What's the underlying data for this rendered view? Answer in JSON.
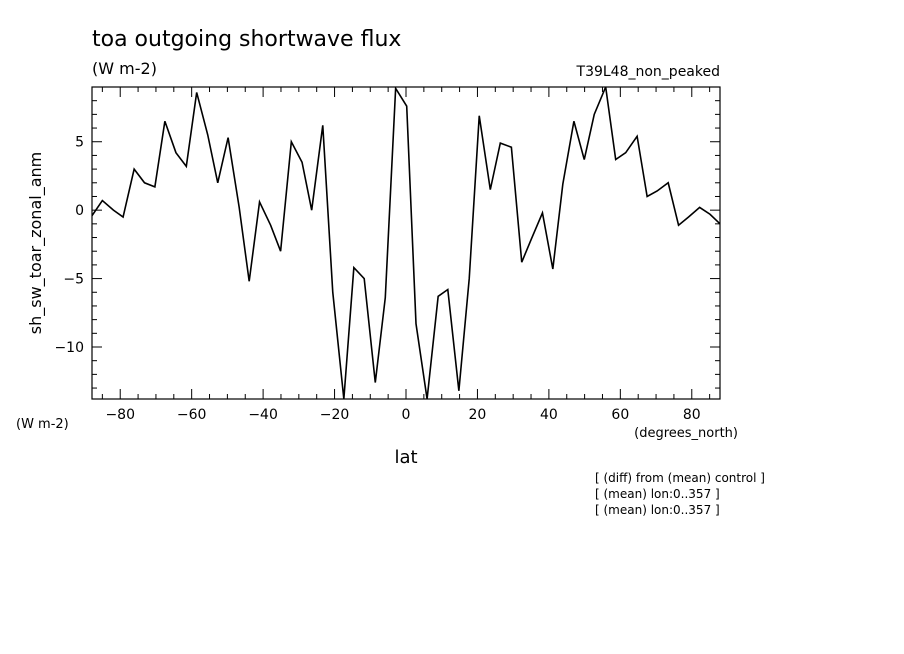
{
  "chart_data": {
    "type": "line",
    "title": "toa outgoing shortwave flux",
    "units": "(W m-2)",
    "experiment": "T39L48_non_peaked",
    "xlabel": "lat",
    "xunits": "(degrees_north)",
    "ylabel": "sh_sw_toar_zonal_anm",
    "yunits": "(W m-2)",
    "xlim": [
      -87.9,
      87.9
    ],
    "ylim": [
      -13.8,
      9.0
    ],
    "x_ticks": [
      -80,
      -60,
      -40,
      -20,
      0,
      20,
      40,
      60,
      80
    ],
    "y_ticks": [
      -10,
      -5,
      0,
      5
    ],
    "notes": [
      "[ (diff) from (mean) control ]",
      "[ (mean) lon:0..357 ]",
      "[ (mean) lon:0..357 ]"
    ],
    "series": [
      {
        "x": [
          -87.9,
          -85.0,
          -81.9,
          -79.2,
          -76.1,
          -73.2,
          -70.3,
          -67.5,
          -64.4,
          -61.5,
          -58.6,
          -55.5,
          -52.7,
          -49.8,
          -46.7,
          -43.9,
          -41.0,
          -37.9,
          -35.1,
          -32.1,
          -29.1,
          -26.4,
          -23.3,
          -20.5,
          -17.4,
          -14.6,
          -11.7,
          -8.6,
          -5.8,
          -2.9,
          0.2,
          2.8,
          5.9,
          9.0,
          11.7,
          14.8,
          17.7,
          20.5,
          23.6,
          26.4,
          29.5,
          32.4,
          35.1,
          38.2,
          41.1,
          43.9,
          47.0,
          49.9,
          52.7,
          55.9,
          58.7,
          61.5,
          64.7,
          67.5,
          70.3,
          73.4,
          76.3,
          79.1,
          82.2,
          85.1,
          87.9
        ],
        "y": [
          -0.4,
          0.7,
          0.0,
          -0.5,
          3.0,
          2.0,
          1.7,
          6.5,
          4.2,
          3.2,
          8.6,
          5.5,
          2.0,
          5.3,
          0.2,
          -5.2,
          0.6,
          -1.1,
          -3.0,
          5.0,
          3.5,
          0.0,
          6.2,
          -6.0,
          -13.8,
          -4.2,
          -5.0,
          -12.6,
          -6.4,
          8.9,
          7.6,
          -8.3,
          -13.8,
          -6.3,
          -5.8,
          -13.2,
          -5.0,
          6.9,
          1.5,
          4.9,
          4.6,
          -3.8,
          -2.1,
          -0.2,
          -4.3,
          1.9,
          6.5,
          3.7,
          7.0,
          9.0,
          3.7,
          4.2,
          5.4,
          1.0,
          1.4,
          2.0,
          -1.1,
          -0.5,
          0.2,
          -0.3,
          -1.0
        ]
      }
    ]
  }
}
